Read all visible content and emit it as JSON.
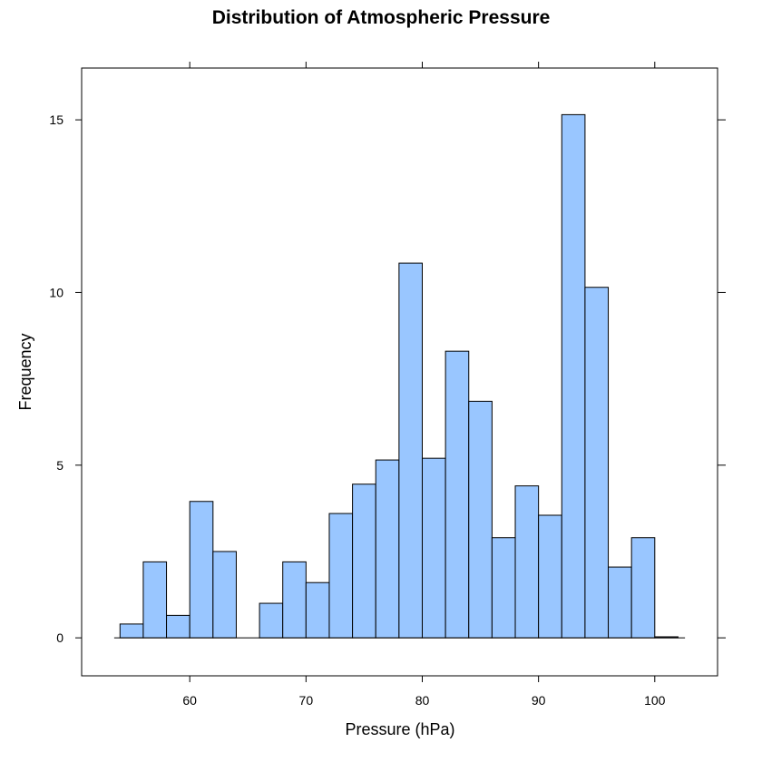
{
  "chart_data": {
    "type": "bar",
    "title": "Distribution of Atmospheric Pressure",
    "xlabel": "Pressure (hPa)",
    "ylabel": "Frequency",
    "xlim": [
      50.7,
      105.4
    ],
    "ylim": [
      -1.1,
      16.5
    ],
    "x_ticks": [
      60,
      70,
      80,
      90,
      100
    ],
    "x_tick_labels": [
      "60",
      "70",
      "80",
      "90",
      "100"
    ],
    "y_ticks": [
      0,
      5,
      10,
      15
    ],
    "y_tick_labels": [
      "0",
      "5",
      "10",
      "15"
    ],
    "bin_edges": [
      54,
      56,
      58,
      60,
      62,
      64,
      66,
      68,
      70,
      72,
      74,
      76,
      78,
      80,
      82,
      84,
      86,
      88,
      90,
      92,
      94,
      96,
      98,
      100,
      102
    ],
    "values": [
      0.4,
      2.2,
      0.65,
      3.95,
      2.5,
      0,
      1.0,
      2.2,
      1.6,
      3.6,
      4.45,
      5.15,
      10.85,
      5.2,
      8.3,
      6.85,
      2.9,
      4.4,
      3.55,
      15.15,
      10.15,
      2.05,
      2.9,
      0.03
    ],
    "bar_color": "#99C6FF",
    "grid": false,
    "legend": "none"
  }
}
